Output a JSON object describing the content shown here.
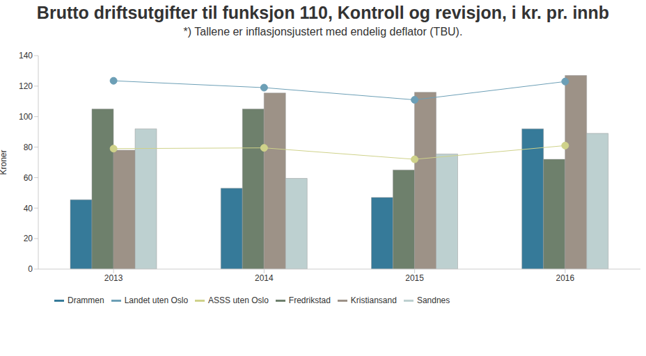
{
  "chart_data": {
    "type": "bar",
    "title": "Brutto driftsutgifter til funksjon 110, Kontroll og revisjon, i kr. pr. innb",
    "subtitle": "*) Tallene er inflasjonsjustert med endelig deflator (TBU).",
    "y_label": "Kroner",
    "categories": [
      "2013",
      "2014",
      "2015",
      "2016"
    ],
    "ylim": [
      0,
      140
    ],
    "yticks": [
      0,
      20,
      40,
      60,
      80,
      100,
      120,
      140
    ],
    "grid": false,
    "legend": "bottom",
    "series": [
      {
        "name": "Drammen",
        "type": "bar",
        "color": "#367a99",
        "values": [
          45.5,
          53,
          47,
          92
        ]
      },
      {
        "name": "Landet uten Oslo",
        "type": "line",
        "marker": "circle",
        "color": "#6c9fb6",
        "values": [
          123.5,
          119,
          111,
          123
        ]
      },
      {
        "name": "ASSS uten Oslo",
        "type": "line",
        "marker": "circle",
        "color": "#cfd28a",
        "values": [
          79,
          79.5,
          72,
          81
        ]
      },
      {
        "name": "Fredrikstad",
        "type": "bar",
        "color": "#6e806c",
        "values": [
          105,
          105,
          65,
          72
        ]
      },
      {
        "name": "Kristiansand",
        "type": "bar",
        "color": "#9d9287",
        "values": [
          78,
          115.5,
          116,
          127
        ]
      },
      {
        "name": "Sandnes",
        "type": "bar",
        "color": "#bdd0d0",
        "values": [
          92,
          59.5,
          75.5,
          89
        ]
      }
    ]
  }
}
